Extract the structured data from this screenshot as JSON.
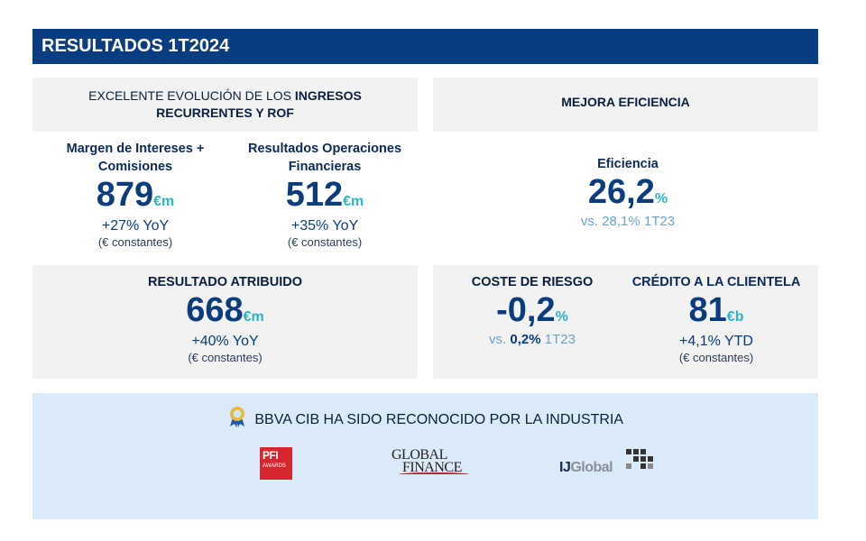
{
  "header": {
    "title": "RESULTADOS 1T2024"
  },
  "income_panel": {
    "title_prefix": "EXCELENTE EVOLUCIÓN DE LOS ",
    "title_bold1": "INGRESOS",
    "title_bold2": "RECURRENTES Y ROF",
    "metrics": [
      {
        "label": "Margen de Intereses +",
        "label2": "Comisiones",
        "value": "879",
        "unit": "€m",
        "change": "+27% YoY",
        "note": "(€ constantes)"
      },
      {
        "label": "Resultados Operaciones",
        "label2": "Financieras",
        "value": "512",
        "unit": "€m",
        "change": "+35% YoY",
        "note": "(€ constantes)"
      }
    ]
  },
  "efficiency_panel": {
    "title": "MEJORA EFICIENCIA",
    "metric": {
      "label": "Eficiencia",
      "value": "26,2",
      "unit": "%",
      "vs": "vs. 28,1% 1T23"
    }
  },
  "attributed_panel": {
    "title": "RESULTADO ATRIBUIDO",
    "value": "668",
    "unit": "€m",
    "change": "+40% YoY",
    "note": "(€ constantes)"
  },
  "risk_panel": {
    "metrics": [
      {
        "label": "COSTE DE RIESGO",
        "value": "-0,2",
        "unit": "%",
        "vs_prefix": "vs. ",
        "vs_bold": "0,2%",
        "vs_suffix": " 1T23"
      },
      {
        "label": "CRÉDITO A LA CLIENTELA",
        "value": "81",
        "unit": "€b",
        "change": "+4,1% YTD",
        "note": "(€ constantes)"
      }
    ]
  },
  "awards": {
    "title": "BBVA CIB HA SIDO RECONOCIDO POR LA INDUSTRIA",
    "logos": [
      {
        "name": "pfi-awards",
        "line1": "PFI",
        "line2": "AWARDS"
      },
      {
        "name": "global-finance",
        "line1": "GLOBAL",
        "line2": "FINANCE"
      },
      {
        "name": "ijglobal",
        "part1": "IJ",
        "part2": "Global"
      }
    ]
  },
  "colors": {
    "banner": "#0a3c80",
    "value": "#0b3d7c",
    "unit_accent": "#2bb5c8",
    "panel": "#f2f2f2",
    "awards_bg": "#daeaf8"
  }
}
